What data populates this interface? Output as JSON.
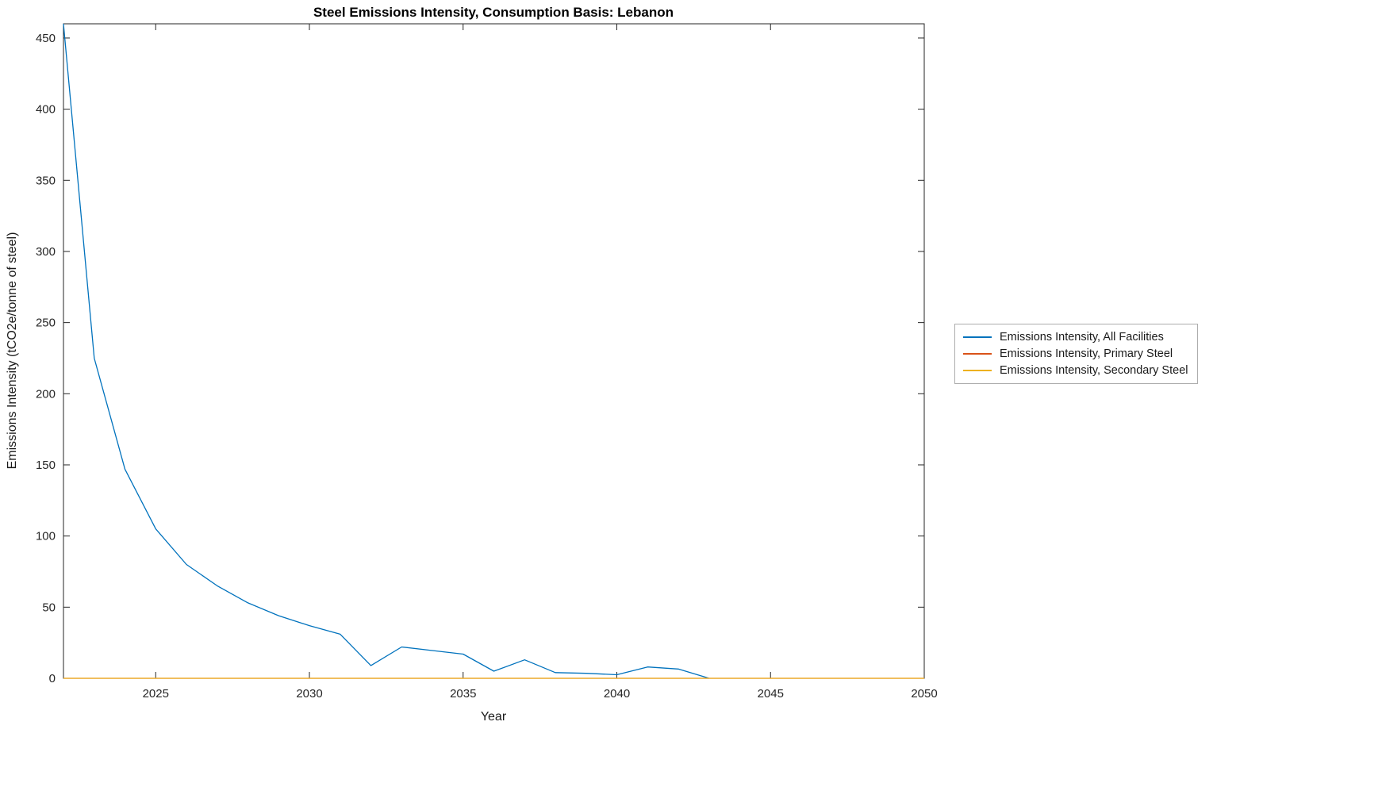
{
  "chart_data": {
    "type": "line",
    "title": "Steel Emissions Intensity, Consumption Basis: Lebanon",
    "xlabel": "Year",
    "ylabel": "Emissions Intensity (tCO2e/tonne of steel)",
    "xlim": [
      2022,
      2050
    ],
    "ylim": [
      0,
      460
    ],
    "xticks": [
      2025,
      2030,
      2035,
      2040,
      2045,
      2050
    ],
    "yticks": [
      0,
      50,
      100,
      150,
      200,
      250,
      300,
      350,
      400,
      450
    ],
    "grid": false,
    "legend_position": "right-outside",
    "series": [
      {
        "name": "Emissions Intensity, All Facilities",
        "color": "#0072BD",
        "x": [
          2022,
          2023,
          2024,
          2025,
          2026,
          2027,
          2028,
          2029,
          2030,
          2031,
          2032,
          2033,
          2034,
          2035,
          2036,
          2037,
          2038,
          2039,
          2040,
          2041,
          2042,
          2043
        ],
        "values": [
          460,
          225,
          147,
          105,
          80,
          65,
          53,
          44,
          37,
          31,
          9,
          22,
          19.5,
          17,
          5,
          13,
          4,
          3.5,
          2.5,
          8,
          6.5,
          0
        ]
      },
      {
        "name": "Emissions Intensity, Primary Steel",
        "color": "#D95319",
        "x": [
          2022,
          2050
        ],
        "values": [
          0,
          0
        ]
      },
      {
        "name": "Emissions Intensity, Secondary Steel",
        "color": "#EDB120",
        "x": [
          2022,
          2050
        ],
        "values": [
          0,
          0
        ]
      }
    ]
  }
}
